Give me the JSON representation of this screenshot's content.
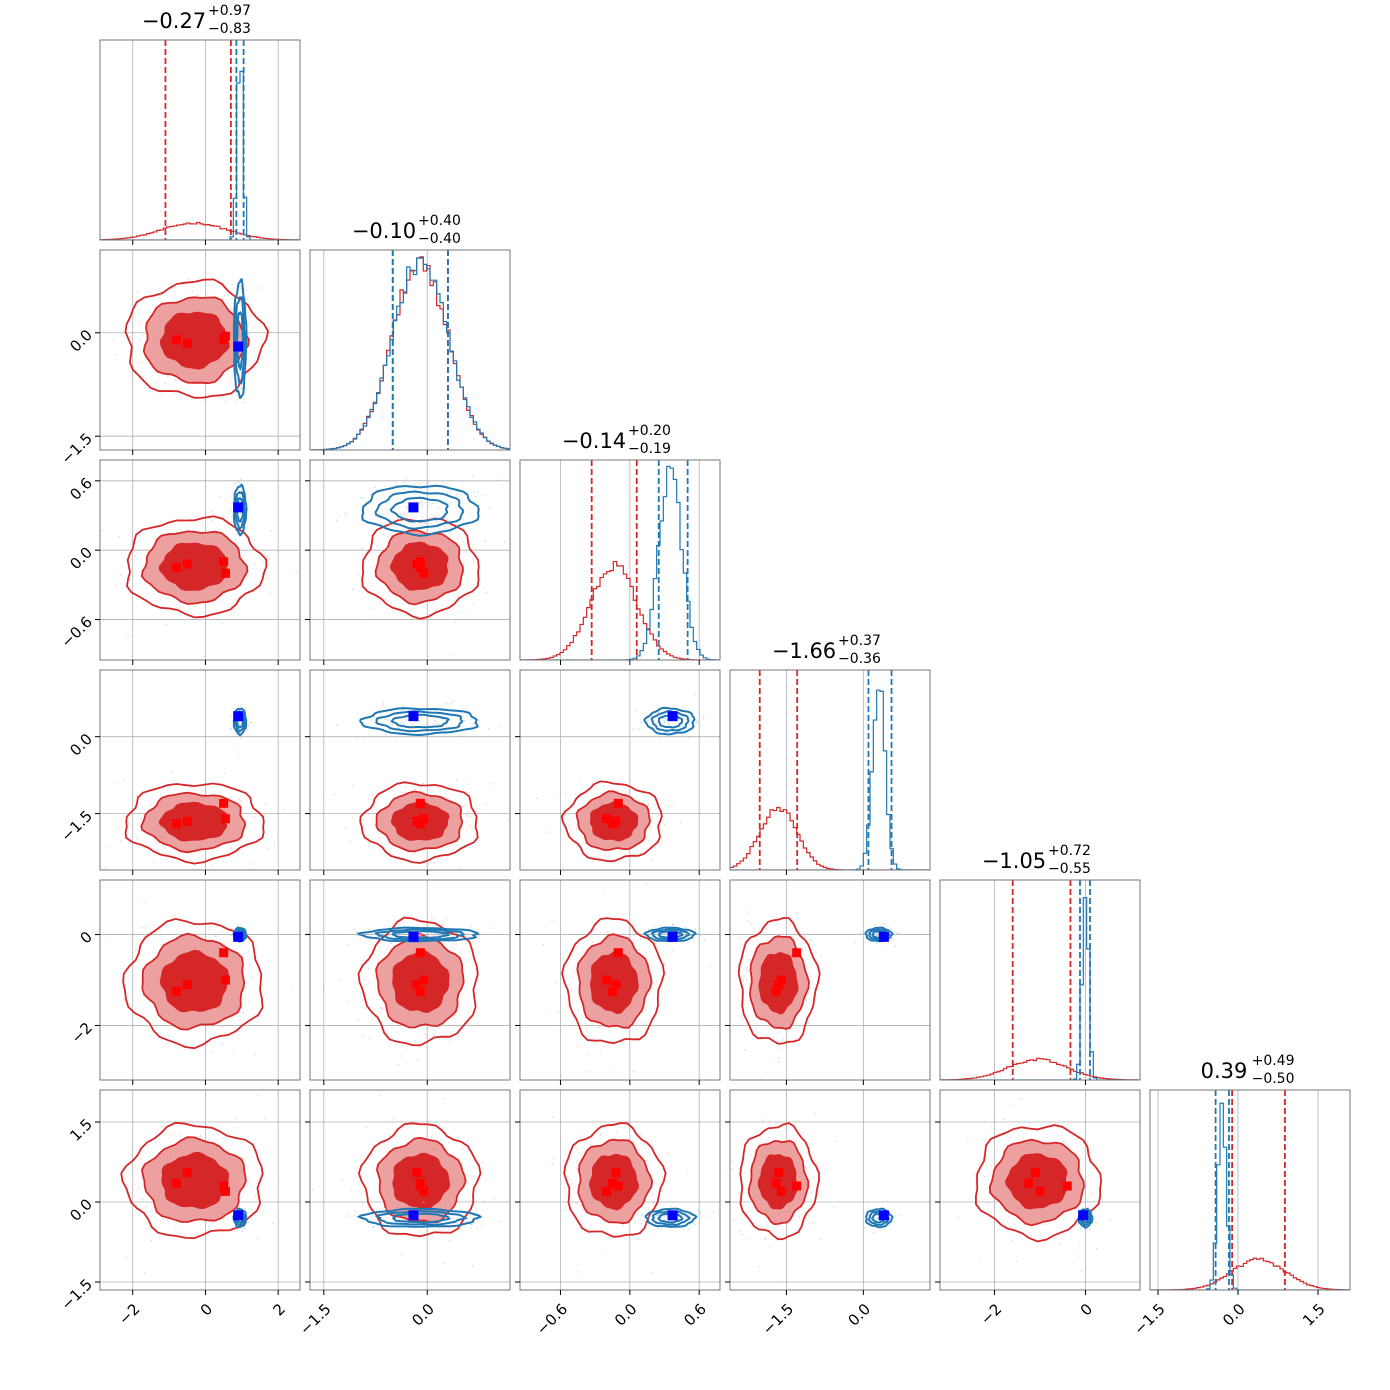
{
  "chart_data": {
    "type": "corner",
    "colors": {
      "red": "#d62728",
      "blue": "#1f77b4",
      "red_marker": "#ff0000",
      "blue_marker": "#0000ff",
      "grid": "#b0b0b0"
    },
    "titles": [
      {
        "median": "−0.27",
        "plus": "+0.97",
        "minus": "−0.83"
      },
      {
        "median": "−0.10",
        "plus": "+0.40",
        "minus": "−0.40"
      },
      {
        "median": "−0.14",
        "plus": "+0.20",
        "minus": "−0.19"
      },
      {
        "median": "−1.66",
        "plus": "+0.37",
        "minus": "−0.36"
      },
      {
        "median": "−1.05",
        "plus": "+0.72",
        "minus": "−0.55"
      },
      {
        "median": "0.39",
        "plus": "+0.49",
        "minus": "−0.50"
      }
    ],
    "params": [
      {
        "range": [
          -2.9,
          2.6
        ],
        "ticks": [
          {
            "v": -2,
            "label": "−2"
          },
          {
            "v": 0,
            "label": "0"
          },
          {
            "v": 2,
            "label": "2"
          }
        ]
      },
      {
        "range": [
          -1.7,
          1.2
        ],
        "ticks": [
          {
            "v": -1.5,
            "label": "−1.5"
          },
          {
            "v": 0.0,
            "label": "0.0"
          }
        ]
      },
      {
        "range": [
          -0.95,
          0.78
        ],
        "ticks": [
          {
            "v": -0.6,
            "label": "−0.6"
          },
          {
            "v": 0.0,
            "label": "0.0"
          },
          {
            "v": 0.6,
            "label": "0.6"
          }
        ]
      },
      {
        "range": [
          -2.6,
          1.3
        ],
        "ticks": [
          {
            "v": -1.5,
            "label": "−1.5"
          },
          {
            "v": 0.0,
            "label": "0.0"
          }
        ]
      },
      {
        "range": [
          -3.2,
          1.2
        ],
        "ticks": [
          {
            "v": -2,
            "label": "−2"
          },
          {
            "v": 0,
            "label": "0"
          }
        ]
      },
      {
        "range": [
          -1.65,
          2.1
        ],
        "ticks": [
          {
            "v": -1.5,
            "label": "−1.5"
          },
          {
            "v": 0.0,
            "label": "0.0"
          },
          {
            "v": 1.5,
            "label": "1.5"
          }
        ]
      }
    ],
    "red": {
      "mean": [
        -0.3,
        -0.1,
        -0.14,
        -1.66,
        -1.05,
        0.39
      ],
      "sd": [
        0.9,
        0.4,
        0.2,
        0.36,
        0.65,
        0.5
      ],
      "quantiles": [
        [
          -1.1,
          0.7
        ],
        [
          -0.5,
          0.3
        ],
        [
          -0.33,
          0.06
        ],
        [
          -2.02,
          -1.29
        ],
        [
          -1.6,
          -0.33
        ],
        [
          -0.11,
          0.88
        ]
      ]
    },
    "blue": {
      "mean": [
        0.95,
        -0.1,
        0.35,
        0.3,
        0.0,
        -0.3
      ],
      "sd": [
        0.08,
        0.4,
        0.1,
        0.12,
        0.07,
        0.08
      ],
      "quantiles": [
        [
          0.85,
          1.05
        ],
        [
          -0.5,
          0.3
        ],
        [
          0.25,
          0.5
        ],
        [
          0.1,
          0.55
        ],
        [
          -0.12,
          0.1
        ],
        [
          -0.42,
          -0.17
        ]
      ]
    },
    "red_markers": [
      [
        -0.8,
        -0.1,
        -0.15,
        -1.7,
        -1.25,
        0.35
      ],
      [
        -0.5,
        -0.15,
        -0.12,
        -1.65,
        -1.1,
        0.55
      ],
      [
        0.5,
        -0.1,
        -0.1,
        -1.3,
        -0.4,
        0.3
      ],
      [
        0.55,
        -0.05,
        -0.2,
        -1.6,
        -1.0,
        0.2
      ]
    ],
    "blue_markers": [
      [
        0.9,
        -0.2,
        0.37,
        0.4,
        -0.05,
        -0.25
      ]
    ]
  }
}
